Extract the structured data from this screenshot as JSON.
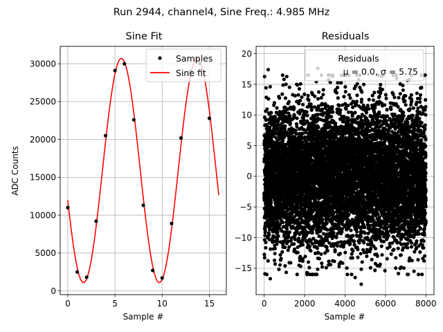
{
  "figure": {
    "suptitle": "Run 2944, channel4, Sine Freq.: 4.985 MHz"
  },
  "chart_data": [
    {
      "type": "line",
      "title": "Sine Fit",
      "xlabel": "Sample #",
      "ylabel": "ADC Counts",
      "xlim": [
        -0.8,
        16.8
      ],
      "ylim": [
        -500,
        32300
      ],
      "xticks": [
        0,
        5,
        10,
        15
      ],
      "yticks": [
        0,
        5000,
        10000,
        15000,
        20000,
        25000,
        30000
      ],
      "grid": true,
      "legend_position": "top-right",
      "series": [
        {
          "name": "Samples",
          "kind": "scatter",
          "color": "#000000",
          "x": [
            0,
            1,
            2,
            3,
            4,
            5,
            6,
            7,
            8,
            9,
            10,
            11,
            12,
            13,
            14,
            15
          ],
          "y": [
            11000,
            2500,
            1800,
            9200,
            20500,
            29100,
            30000,
            22600,
            11300,
            2700,
            1700,
            8900,
            20200,
            29000,
            30000,
            22800
          ]
        },
        {
          "name": "Sine fit",
          "kind": "line",
          "color": "#ff0000",
          "function": {
            "offset": 15900,
            "amplitude": 14800,
            "period": 8.03,
            "phase_sample": 5.68,
            "x_start": 0,
            "x_end": 16
          }
        }
      ]
    },
    {
      "type": "scatter",
      "title": "Residuals",
      "xlabel": "Sample #",
      "ylabel": "",
      "xlim": [
        -400,
        8400
      ],
      "ylim": [
        -19.3,
        21.2
      ],
      "xticks": [
        0,
        2000,
        4000,
        6000,
        8000
      ],
      "yticks": [
        -15,
        -10,
        -5,
        0,
        5,
        10,
        15,
        20
      ],
      "grid": true,
      "legend_position": "top-right",
      "series": [
        {
          "name": "Residuals",
          "legend_stats": "μ = 0.0, σ = 5.75",
          "color": "#000000",
          "distribution": {
            "n_points": 8000,
            "x_range": [
              0,
              8000
            ],
            "mean": 0.0,
            "std": 5.75
          },
          "highlighted_points": [
            {
              "x": 200,
              "y": 17.4
            },
            {
              "x": 2650,
              "y": 17.6
            },
            {
              "x": 300,
              "y": -16.7
            },
            {
              "x": 4800,
              "y": -17.6
            },
            {
              "x": 4500,
              "y": -16.5
            }
          ]
        }
      ]
    }
  ]
}
